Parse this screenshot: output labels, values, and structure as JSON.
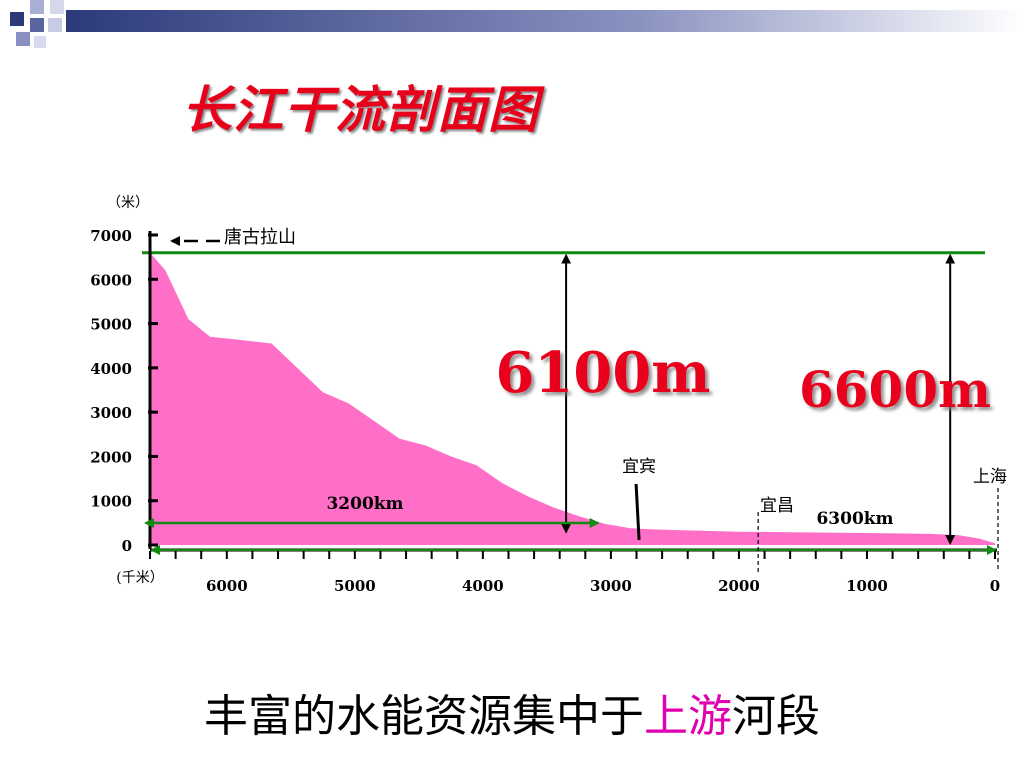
{
  "title": "长江干流剖面图",
  "colors": {
    "title": "#e8001a",
    "profile_fill": "#ff6ec7",
    "green_line": "#128a12",
    "big_label": "#e8001a",
    "highlight": "#e000b0"
  },
  "caption": {
    "before": "丰富的水能资源集中于",
    "highlight": "上游",
    "after": "河段"
  },
  "chart_data": {
    "type": "area",
    "title": "长江干流剖面图",
    "ylabel": "（米）",
    "xlabel": "(千米）",
    "ylim": [
      0,
      7000
    ],
    "xlim": [
      6600,
      0
    ],
    "y_ticks": [
      "7000",
      "6000",
      "5000",
      "4000",
      "3000",
      "2000",
      "1000",
      "0"
    ],
    "y_tick_values": [
      7000,
      6000,
      5000,
      4000,
      3000,
      2000,
      1000,
      0
    ],
    "x_ticks": [
      "6000",
      "5000",
      "4000",
      "3000",
      "2000",
      "1000",
      "0"
    ],
    "x_tick_values": [
      6000,
      5000,
      4000,
      3000,
      2000,
      1000,
      0
    ],
    "series": [
      {
        "x": [
          6600,
          6480,
          6300,
          6130,
          5950,
          5650,
          5450,
          5250,
          5050,
          4850,
          4650,
          4450,
          4250,
          4050,
          3850,
          3650,
          3450,
          3250,
          3050,
          2850,
          2650,
          2400,
          2000,
          1600,
          1000,
          500,
          280,
          120,
          0
        ],
        "y": [
          6600,
          6200,
          5100,
          4700,
          4650,
          4550,
          4000,
          3450,
          3200,
          2800,
          2400,
          2250,
          2000,
          1800,
          1400,
          1100,
          850,
          650,
          480,
          380,
          350,
          330,
          300,
          290,
          270,
          250,
          220,
          140,
          40
        ]
      }
    ],
    "annotations": {
      "peak_label": "唐古拉山",
      "reference_height": 6600,
      "arrow1": {
        "label": "6100m",
        "x": 3350
      },
      "arrow2": {
        "label": "6600m",
        "x": 350
      },
      "segment1": {
        "label": "3200km",
        "from": 6600,
        "to": 3400
      },
      "segment2": {
        "label": "6300km"
      },
      "cities": [
        {
          "name": "宜宾",
          "x": 2780,
          "label_x": 2780
        },
        {
          "name": "宜昌",
          "x": 1850,
          "label_x": 1650
        },
        {
          "name": "上海",
          "x": 0,
          "label_x": 30
        }
      ]
    }
  }
}
